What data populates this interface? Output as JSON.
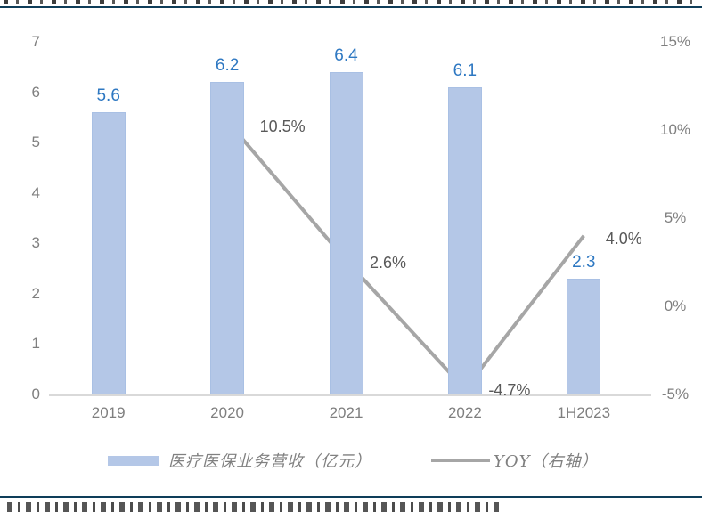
{
  "chart_data": {
    "type": "bar",
    "subtype": "bar-with-line-combo",
    "categories": [
      "2019",
      "2020",
      "2021",
      "2022",
      "1H2023"
    ],
    "series": [
      {
        "name": "医疗医保业务营收（亿元）",
        "type": "bar",
        "axis": "left",
        "values": [
          5.6,
          6.2,
          6.4,
          6.1,
          2.3
        ],
        "labels": [
          "5.6",
          "6.2",
          "6.4",
          "6.1",
          "2.3"
        ]
      },
      {
        "name": "YOY（右轴）",
        "type": "line",
        "axis": "right",
        "values": [
          null,
          10.5,
          2.6,
          -4.7,
          4.0
        ],
        "labels": [
          null,
          "10.5%",
          "2.6%",
          "-4.7%",
          "4.0%"
        ]
      }
    ],
    "left_axis": {
      "min": 0,
      "max": 7,
      "tick_step": 1,
      "ticks": [
        "0",
        "1",
        "2",
        "3",
        "4",
        "5",
        "6",
        "7"
      ]
    },
    "right_axis": {
      "min": -5,
      "max": 15,
      "tick_step": 5,
      "ticks": [
        "-5%",
        "0%",
        "5%",
        "10%",
        "15%"
      ]
    },
    "grid": "off",
    "legend_position": "bottom"
  },
  "colors": {
    "bar_fill": "#b4c7e7",
    "bar_border": "#a9c0e4",
    "bar_label": "#2e78c2",
    "line": "#a6a6a6",
    "line_label": "#595959",
    "axis_text": "#7f7f7f",
    "axis_line": "#d9d9d9",
    "divider": "#0e3d59",
    "legend_text": "#808080"
  }
}
